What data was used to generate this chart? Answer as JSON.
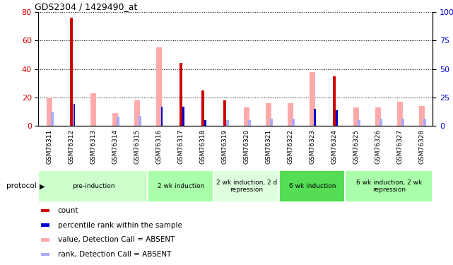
{
  "title": "GDS2304 / 1429490_at",
  "samples": [
    "GSM76311",
    "GSM76312",
    "GSM76313",
    "GSM76314",
    "GSM76315",
    "GSM76316",
    "GSM76317",
    "GSM76318",
    "GSM76319",
    "GSM76320",
    "GSM76321",
    "GSM76322",
    "GSM76323",
    "GSM76324",
    "GSM76325",
    "GSM76326",
    "GSM76327",
    "GSM76328"
  ],
  "count": [
    0,
    76,
    0,
    0,
    0,
    0,
    44,
    25,
    18,
    0,
    0,
    0,
    0,
    35,
    0,
    0,
    0,
    0
  ],
  "rank": [
    0,
    19,
    0,
    0,
    0,
    17,
    17,
    5,
    0,
    0,
    0,
    0,
    15,
    14,
    0,
    0,
    0,
    0
  ],
  "value_absent": [
    20,
    0,
    23,
    9,
    18,
    55,
    0,
    0,
    0,
    13,
    16,
    16,
    38,
    0,
    13,
    13,
    17,
    14
  ],
  "rank_absent": [
    12,
    0,
    0,
    8,
    9,
    0,
    0,
    0,
    5,
    5,
    6,
    6,
    0,
    0,
    5,
    6,
    6,
    6
  ],
  "ylim_left": [
    0,
    80
  ],
  "ylim_right": [
    0,
    100
  ],
  "yticks_left": [
    0,
    20,
    40,
    60,
    80
  ],
  "yticks_right": [
    0,
    25,
    50,
    75,
    100
  ],
  "color_count": "#cc0000",
  "color_rank": "#0000cc",
  "color_value_absent": "#ffaaaa",
  "color_rank_absent": "#aaaaff",
  "protocol_groups": [
    {
      "label": "pre-induction",
      "start": 0,
      "end": 4,
      "color": "#ccffcc"
    },
    {
      "label": "2 wk induction",
      "start": 5,
      "end": 7,
      "color": "#aaffaa"
    },
    {
      "label": "2 wk induction, 2 d\nrepression",
      "start": 8,
      "end": 10,
      "color": "#ddffdd"
    },
    {
      "label": "6 wk induction",
      "start": 11,
      "end": 13,
      "color": "#55dd55"
    },
    {
      "label": "6 wk induction, 2 wk\nrepression",
      "start": 14,
      "end": 17,
      "color": "#aaffaa"
    }
  ],
  "background_color": "#ffffff"
}
